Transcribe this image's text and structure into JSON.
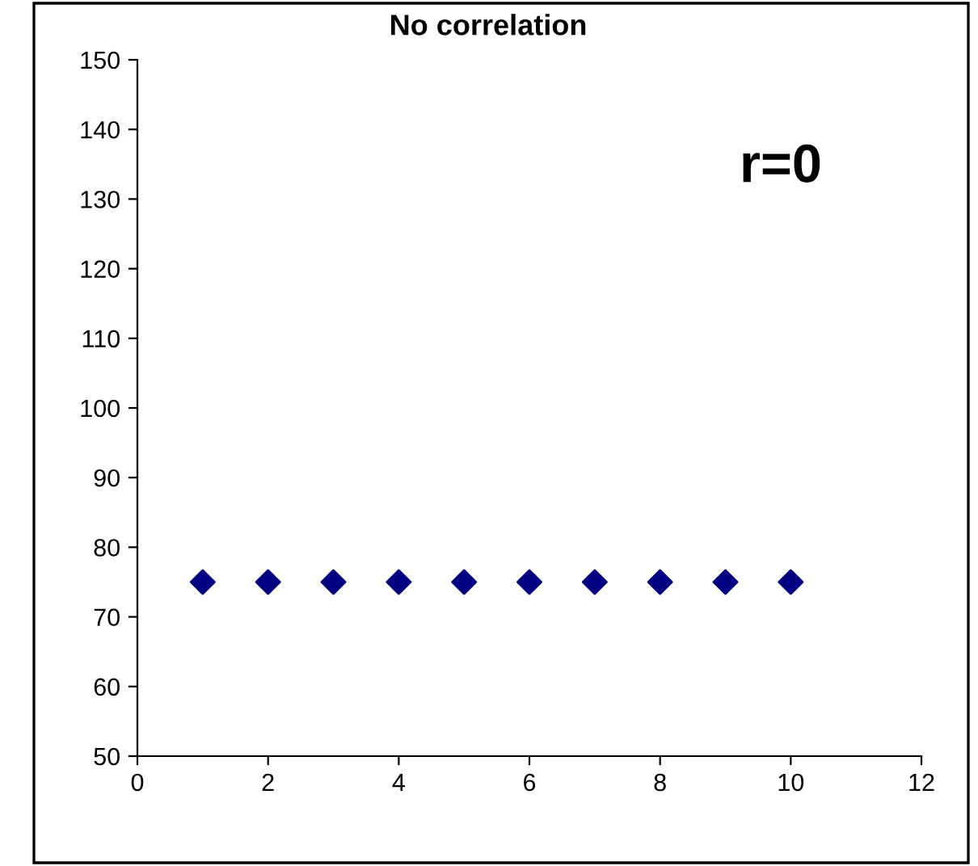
{
  "chart_data": {
    "type": "scatter",
    "title": "No correlation",
    "annotations": [
      "r=0"
    ],
    "x": [
      1,
      2,
      3,
      4,
      5,
      6,
      7,
      8,
      9,
      10
    ],
    "series": [
      {
        "color": "#000080",
        "values": [
          75,
          75,
          75,
          75,
          75,
          75,
          75,
          75,
          75,
          75
        ]
      }
    ],
    "marker": "diamond",
    "xlim": [
      0,
      12
    ],
    "xticks": [
      0,
      2,
      4,
      6,
      8,
      10,
      12
    ],
    "ylim": [
      50,
      150
    ],
    "yticks": [
      50,
      60,
      70,
      80,
      90,
      100,
      110,
      120,
      130,
      140,
      150
    ],
    "grid": false,
    "legend": false
  }
}
